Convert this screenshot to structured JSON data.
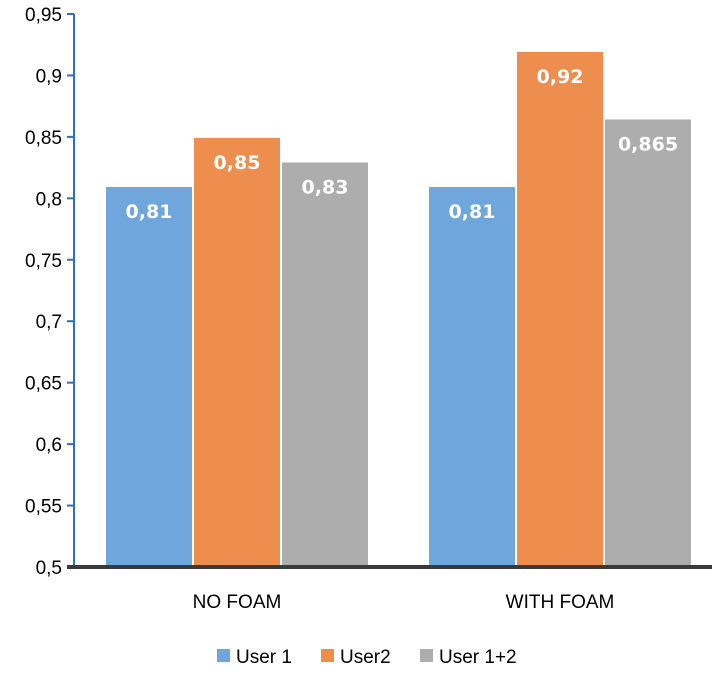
{
  "chart_data": {
    "type": "bar",
    "title": "",
    "xlabel": "",
    "ylabel": "",
    "categories": [
      "NO FOAM",
      "WITH FOAM"
    ],
    "series": [
      {
        "name": "User 1",
        "values": [
          0.81,
          0.81
        ],
        "labels": [
          "0,81",
          "0,81"
        ],
        "color": "#6FA6DC"
      },
      {
        "name": "User2",
        "values": [
          0.85,
          0.92
        ],
        "labels": [
          "0,85",
          "0,92"
        ],
        "color": "#EE8E4E"
      },
      {
        "name": "User 1+2",
        "values": [
          0.83,
          0.865
        ],
        "labels": [
          "0,83",
          "0,865"
        ],
        "color": "#ADADAD"
      }
    ],
    "ylim": [
      0.5,
      0.95
    ],
    "yticks": [
      0.5,
      0.55,
      0.6,
      0.65,
      0.7,
      0.75,
      0.8,
      0.85,
      0.9,
      0.95
    ],
    "ytick_labels": [
      "0,5",
      "0,55",
      "0,6",
      "0,65",
      "0,7",
      "0,75",
      "0,8",
      "0,85",
      "0,9",
      "0,95"
    ],
    "grid": false,
    "legend_position": "bottom"
  }
}
